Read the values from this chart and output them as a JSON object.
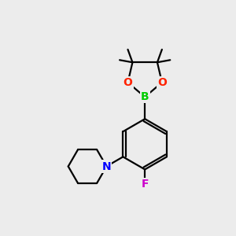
{
  "background_color": "#ececec",
  "bond_color": "#000000",
  "atom_colors": {
    "B": "#00cc00",
    "O": "#ff2200",
    "N": "#0000ff",
    "F": "#cc00cc",
    "C": "#000000"
  },
  "line_width": 1.6,
  "font_size_atoms": 10
}
